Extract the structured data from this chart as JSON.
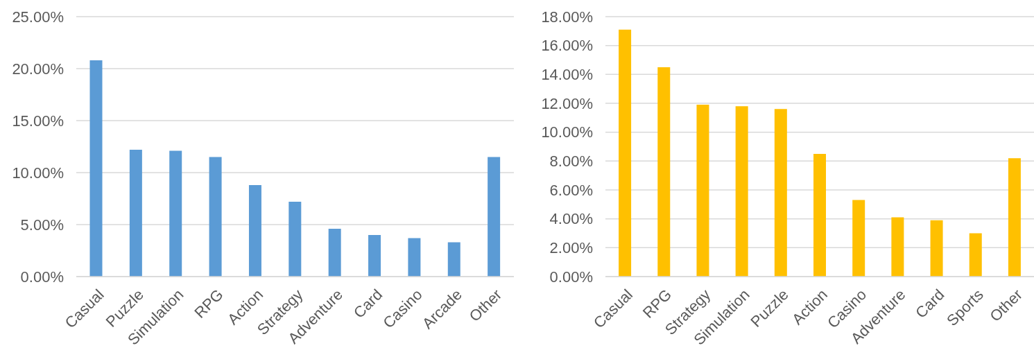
{
  "chart_data": [
    {
      "type": "bar",
      "categories": [
        "Casual",
        "Puzzle",
        "Simulation",
        "RPG",
        "Action",
        "Strategy",
        "Adventure",
        "Card",
        "Casino",
        "Arcade",
        "Other"
      ],
      "values": [
        20.8,
        12.2,
        12.1,
        11.5,
        8.8,
        7.2,
        4.6,
        4.0,
        3.7,
        3.3,
        11.5
      ],
      "color": "#5b9bd5",
      "ylim": [
        0,
        25
      ],
      "yticks": [
        {
          "value": 0,
          "label": "0.00%"
        },
        {
          "value": 5,
          "label": "5.00%"
        },
        {
          "value": 10,
          "label": "10.00%"
        },
        {
          "value": 15,
          "label": "15.00%"
        },
        {
          "value": 20,
          "label": "20.00%"
        },
        {
          "value": 25,
          "label": "25.00%"
        }
      ],
      "grid": "y"
    },
    {
      "type": "bar",
      "categories": [
        "Casual",
        "RPG",
        "Strategy",
        "Simulation",
        "Puzzle",
        "Action",
        "Casino",
        "Adventure",
        "Card",
        "Sports",
        "Other"
      ],
      "values": [
        17.1,
        14.5,
        11.9,
        11.8,
        11.6,
        8.5,
        5.3,
        4.1,
        3.9,
        3.0,
        8.2
      ],
      "color": "#ffc000",
      "ylim": [
        0,
        18
      ],
      "yticks": [
        {
          "value": 0,
          "label": "0.00%"
        },
        {
          "value": 2,
          "label": "2.00%"
        },
        {
          "value": 4,
          "label": "4.00%"
        },
        {
          "value": 6,
          "label": "6.00%"
        },
        {
          "value": 8,
          "label": "8.00%"
        },
        {
          "value": 10,
          "label": "10.00%"
        },
        {
          "value": 12,
          "label": "12.00%"
        },
        {
          "value": 14,
          "label": "14.00%"
        },
        {
          "value": 16,
          "label": "16.00%"
        },
        {
          "value": 18,
          "label": "18.00%"
        }
      ],
      "grid": "y"
    }
  ]
}
